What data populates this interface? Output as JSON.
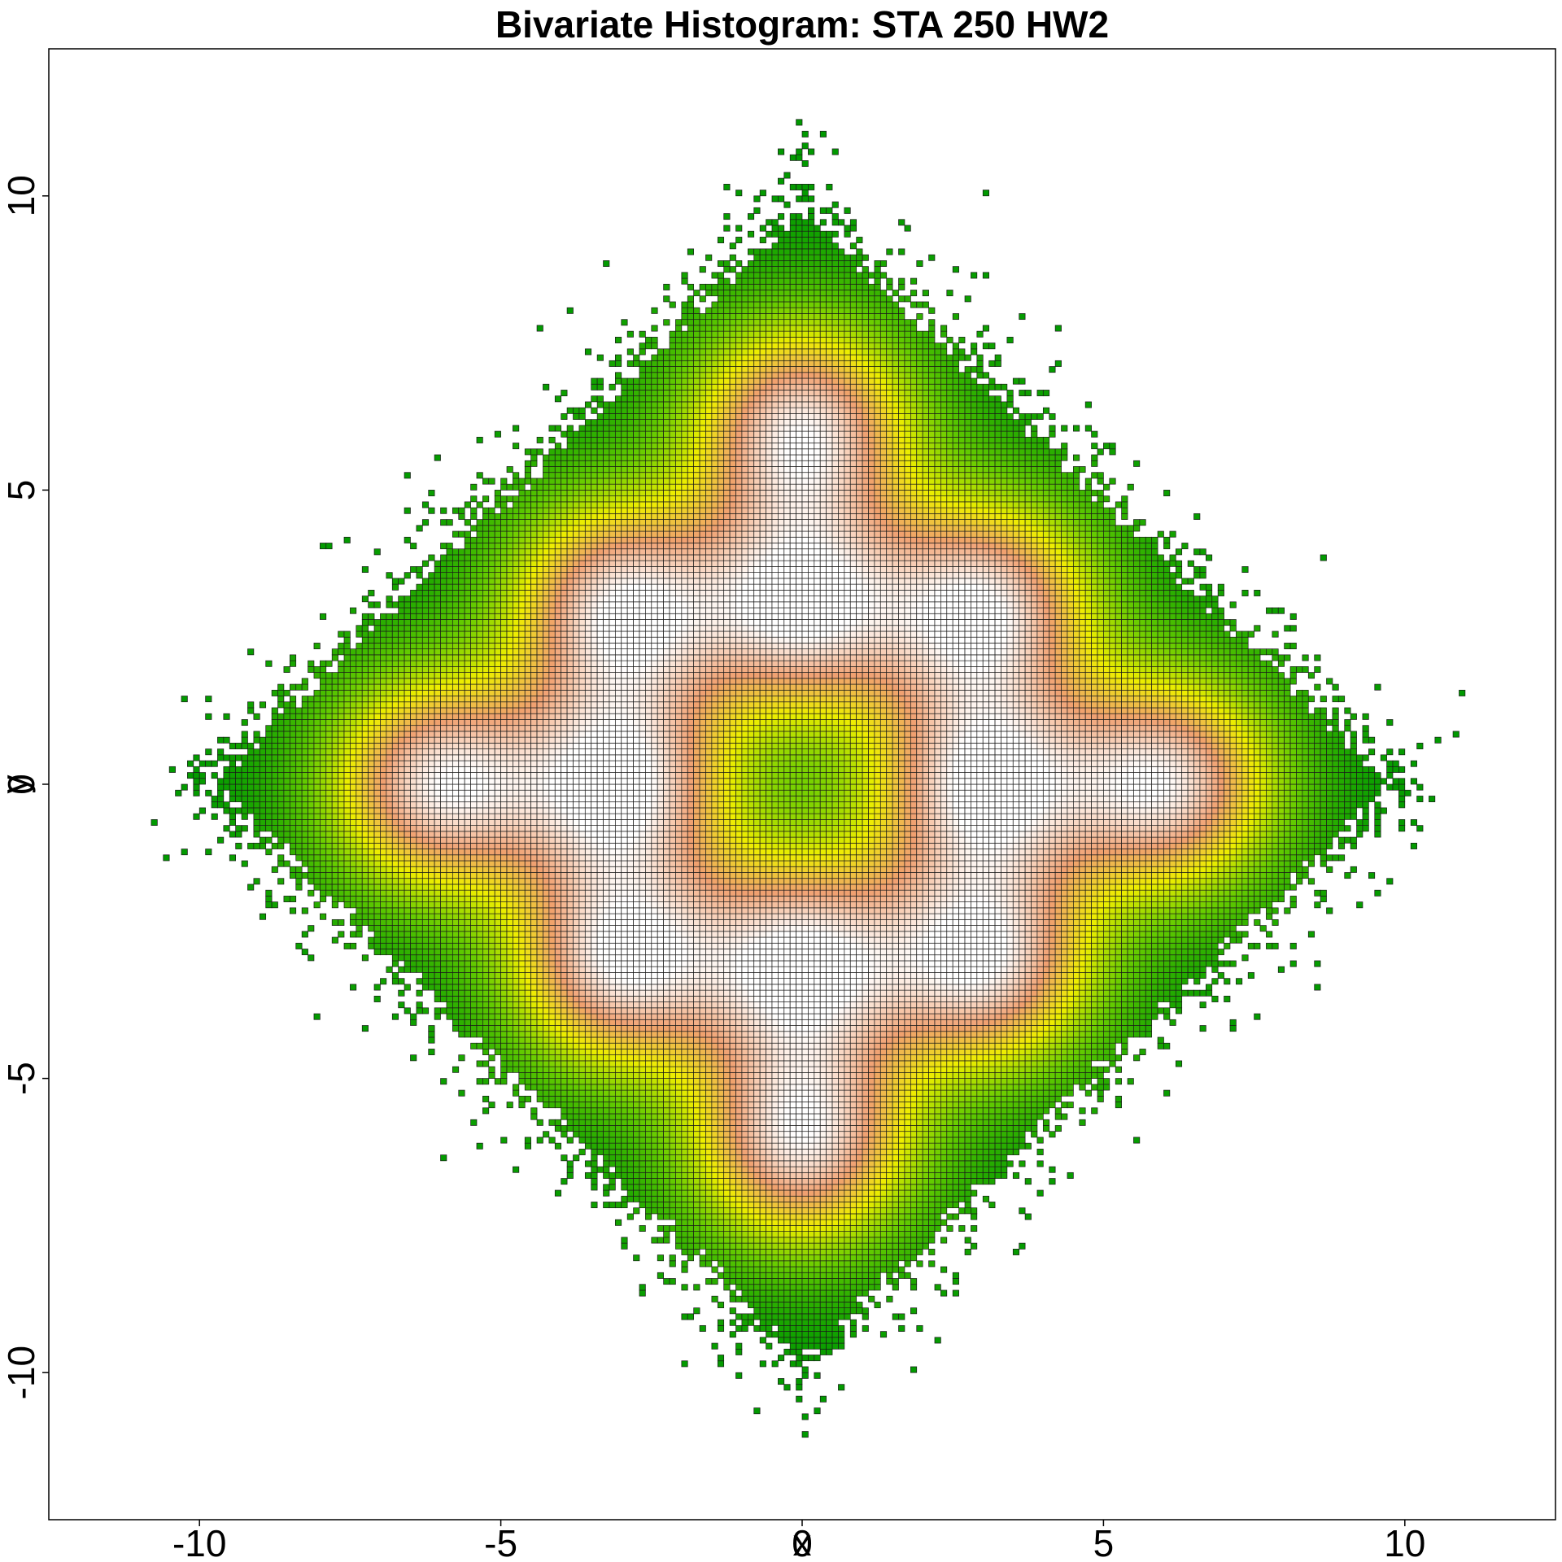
{
  "chart_data": {
    "type": "heatmap",
    "title": "Bivariate Histogram: STA 250 HW2",
    "xlabel": "x",
    "ylabel": "y",
    "xlim": [
      -12.5,
      12.5
    ],
    "ylim": [
      -12.5,
      12.5
    ],
    "x_ticks": [
      -10,
      -5,
      0,
      5,
      10
    ],
    "y_ticks": [
      -10,
      -5,
      0,
      5,
      10
    ],
    "x_tick_labels": [
      "-10",
      "-5",
      "0",
      "5",
      "10"
    ],
    "y_tick_labels": [
      "-10",
      "-5",
      "0",
      "5",
      "10"
    ],
    "bin_width": 0.1,
    "grid": false,
    "legend": "none",
    "color_scale": [
      "#009900",
      "#66cc00",
      "#eeee00",
      "#f0a070",
      "#ffffff"
    ],
    "cell_border_color": "#1a1a1a",
    "density_peaks": [
      {
        "x": 0,
        "y": 6
      },
      {
        "x": -3,
        "y": 3
      },
      {
        "x": 0,
        "y": 3
      },
      {
        "x": 3,
        "y": 3
      },
      {
        "x": -6,
        "y": 0
      },
      {
        "x": -3,
        "y": 0
      },
      {
        "x": 3,
        "y": 0
      },
      {
        "x": 6,
        "y": 0
      },
      {
        "x": -3,
        "y": -3
      },
      {
        "x": 0,
        "y": -3
      },
      {
        "x": 3,
        "y": -3
      },
      {
        "x": 0,
        "y": -6
      }
    ],
    "support_shape": "diamond, |x|+|y| up to about 11"
  }
}
